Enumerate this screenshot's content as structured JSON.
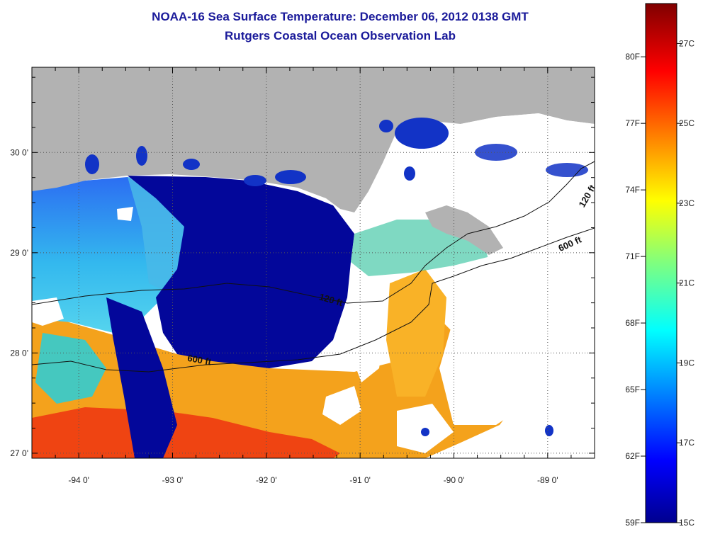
{
  "title": "NOAA-16 Sea Surface Temperature:  December 06, 2012 0138 GMT",
  "subtitle": "Rutgers Coastal Ocean Observation Lab",
  "map": {
    "lon_range": [
      -94.5,
      -88.5
    ],
    "lat_range": [
      26.95,
      30.85
    ],
    "lon_ticks": [
      {
        "value": -94,
        "label": "-94 0'"
      },
      {
        "value": -93,
        "label": "-93 0'"
      },
      {
        "value": -92,
        "label": "-92 0'"
      },
      {
        "value": -91,
        "label": "-91 0'"
      },
      {
        "value": -90,
        "label": "-90 0'"
      },
      {
        "value": -89,
        "label": "-89 0'"
      }
    ],
    "lat_ticks": [
      {
        "value": 30,
        "label": "30 0'"
      },
      {
        "value": 29,
        "label": "29 0'"
      },
      {
        "value": 28,
        "label": "28 0'"
      },
      {
        "value": 27,
        "label": "27 0'"
      }
    ],
    "contour_labels": [
      {
        "text": "120 ft",
        "lon": -91.32,
        "lat": 28.5,
        "angle": 16
      },
      {
        "text": "600 ft",
        "lon": -92.72,
        "lat": 27.9,
        "angle": 10
      },
      {
        "text": "600 ft",
        "lon": -88.75,
        "lat": 29.06,
        "angle": -24
      },
      {
        "text": "120 ft",
        "lon": -88.55,
        "lat": 29.55,
        "angle": -60
      }
    ],
    "land_color": "#b2b2b2",
    "cloud_color": "#ffffff"
  },
  "colorbar": {
    "min_c": 15,
    "max_c": 28,
    "fahrenheit_labels": [
      "80F",
      "77F",
      "74F",
      "71F",
      "68F",
      "65F",
      "62F",
      "59F"
    ],
    "celsius_labels": [
      "27C",
      "25C",
      "23C",
      "21C",
      "19C",
      "17C",
      "15C"
    ]
  }
}
